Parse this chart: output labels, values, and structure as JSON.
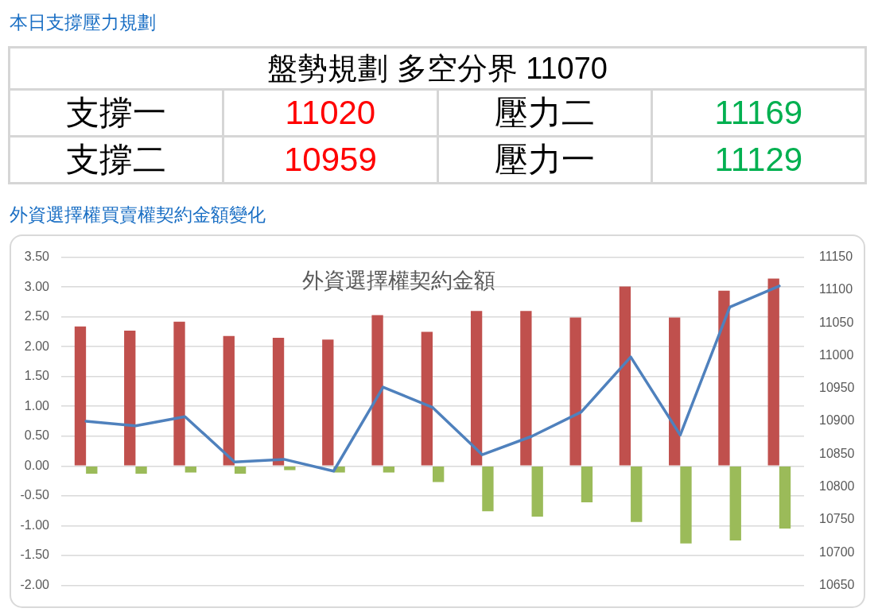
{
  "chart_data": [
    {
      "type": "other",
      "title": "本日支撐壓力規劃",
      "subtitle": "盤勢規劃 多空分界 11070",
      "annotations": [
        "支撐一",
        "11020",
        "壓力二",
        "11169",
        "支撐二",
        "10959",
        "壓力一",
        "11129"
      ],
      "colors": [
        "#000000",
        "#ff0000",
        "#000000",
        "#00b050",
        "#000000",
        "#ff0000",
        "#000000",
        "#00b050"
      ]
    },
    {
      "type": "bar",
      "title": "外資選擇權買賣權契約金額變化",
      "subtitle": "外資選擇權契約金額",
      "categories": [
        null,
        null,
        null,
        null,
        null,
        null,
        null,
        null,
        null,
        null,
        null,
        null,
        null,
        null,
        null
      ],
      "series": [
        {
          "color": "#c0504d",
          "values": [
            2.34,
            2.27,
            2.42,
            2.18,
            2.15,
            2.12,
            2.53,
            2.25,
            2.6,
            2.6,
            2.49,
            3.01,
            2.49,
            2.94,
            3.14
          ]
        },
        {
          "color": "#9bbb59",
          "values": [
            -0.13,
            -0.13,
            -0.11,
            -0.13,
            -0.07,
            -0.11,
            -0.11,
            -0.27,
            -0.76,
            -0.85,
            -0.61,
            -0.94,
            -1.3,
            -1.25,
            -1.05
          ]
        },
        {
          "type": "line",
          "axis": "y2",
          "color": "#4f81bd",
          "values": [
            10900,
            10893,
            10907,
            10838,
            10842,
            10824,
            10952,
            10921,
            10849,
            10877,
            10914,
            10998,
            10879,
            11074,
            11106
          ]
        }
      ],
      "ylim": [
        -2,
        3.5
      ],
      "yticks": [
        {
          "value": 3.5,
          "label": "3.50"
        },
        {
          "value": 3,
          "label": "3.00"
        },
        {
          "value": 2.5,
          "label": "2.50"
        },
        {
          "value": 2,
          "label": "2.00"
        },
        {
          "value": 1.5,
          "label": "1.50"
        },
        {
          "value": 1,
          "label": "1.00"
        },
        {
          "value": 0.5,
          "label": "0.50"
        },
        {
          "value": 0,
          "label": "0.00"
        },
        {
          "value": -0.5,
          "label": "-0.50"
        },
        {
          "value": -1,
          "label": "-1.00"
        },
        {
          "value": -1.5,
          "label": "-1.50"
        },
        {
          "value": -2,
          "label": "-2.00"
        }
      ],
      "y2lim": [
        10650,
        11150
      ],
      "y2ticks": [
        11150,
        11100,
        11050,
        11000,
        10950,
        10900,
        10850,
        10800,
        10750,
        10700,
        10650
      ],
      "grid": "y",
      "legend": false,
      "marker": "none"
    }
  ]
}
